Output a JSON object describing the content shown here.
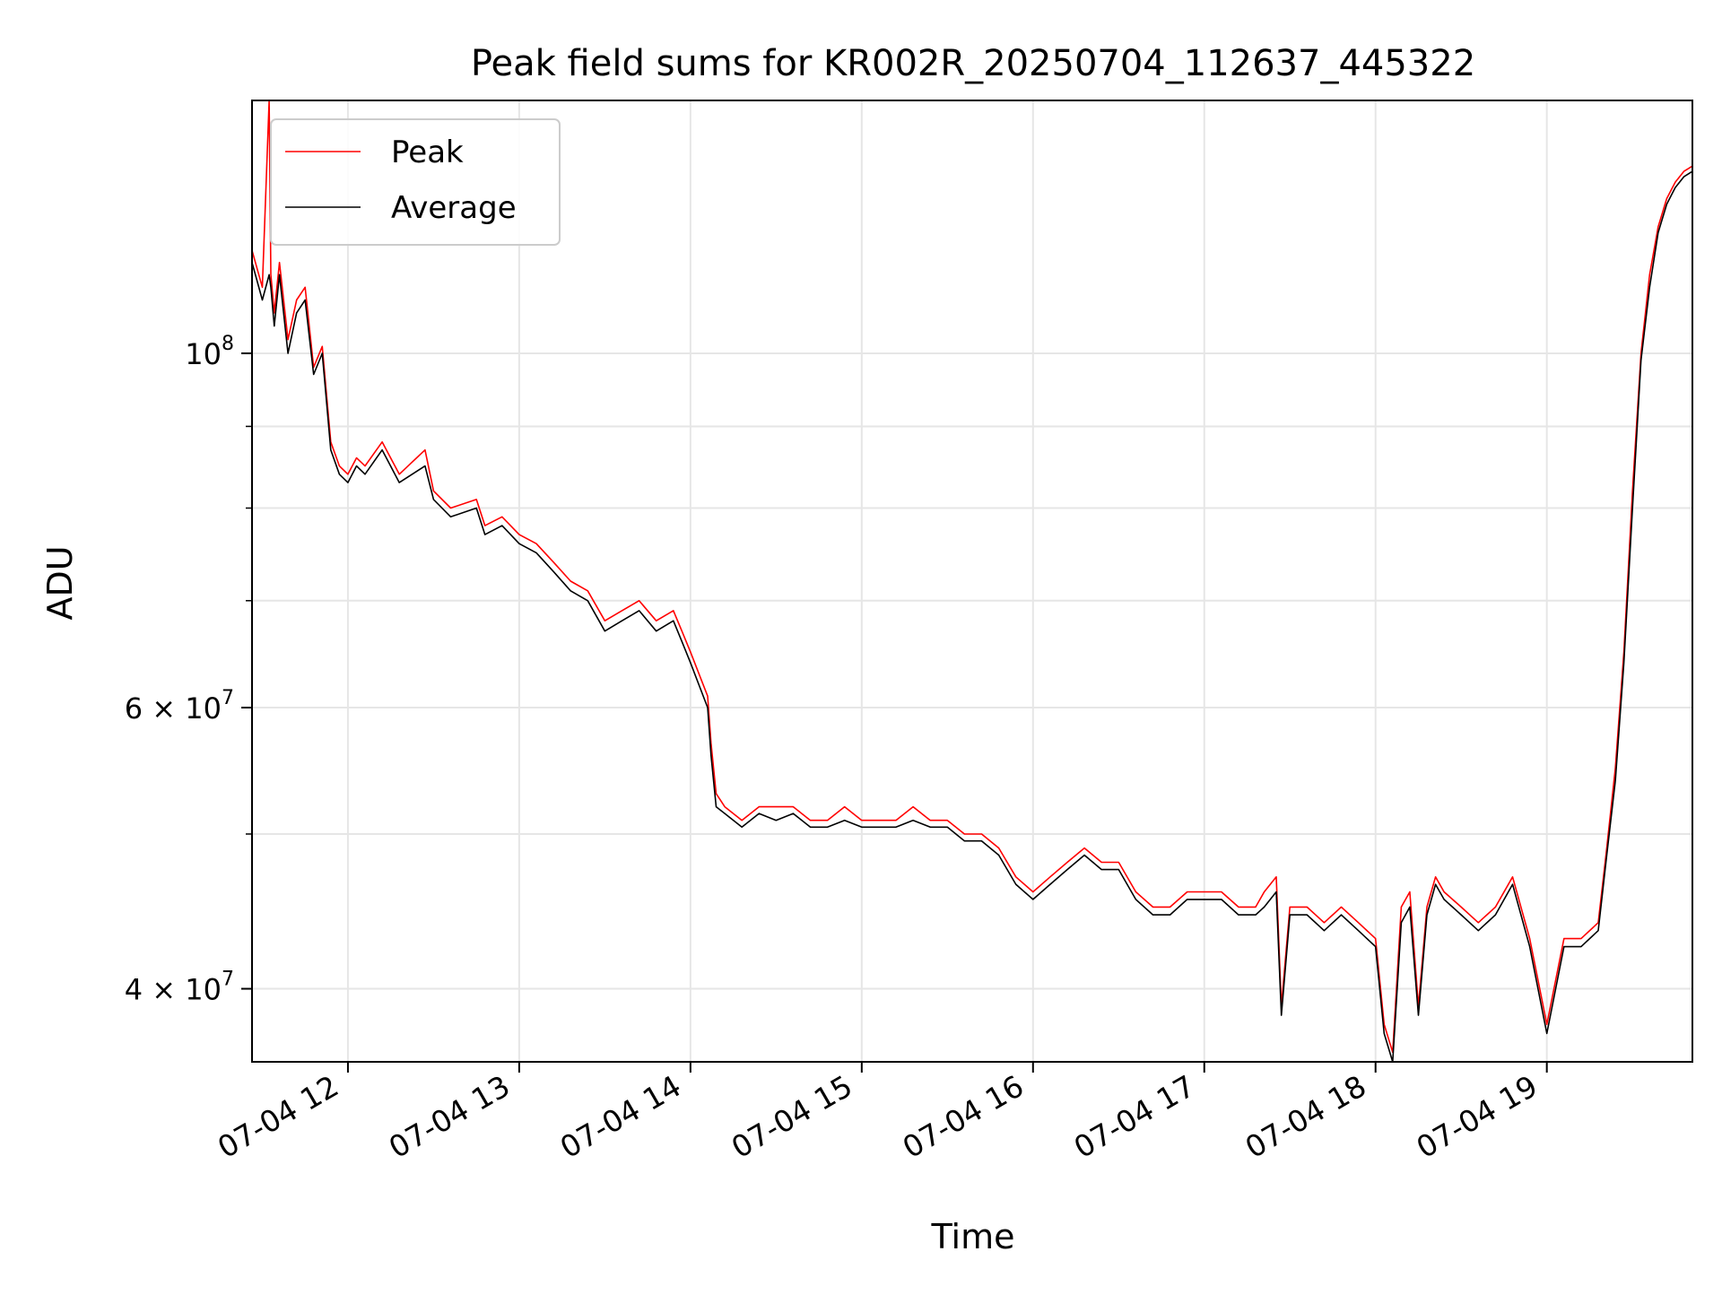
{
  "chart_data": {
    "type": "line",
    "title": "Peak field sums for KR002R_20250704_112637_445322",
    "xlabel": "Time",
    "ylabel": "ADU",
    "yscale": "log",
    "grid": true,
    "legend_position": "top-left",
    "x_unit": "hours",
    "x_range": [
      11.44,
      19.85
    ],
    "y_range": [
      36000000,
      144000000
    ],
    "x_ticks": [
      {
        "value": 12,
        "label": "07-04 12"
      },
      {
        "value": 13,
        "label": "07-04 13"
      },
      {
        "value": 14,
        "label": "07-04 14"
      },
      {
        "value": 15,
        "label": "07-04 15"
      },
      {
        "value": 16,
        "label": "07-04 16"
      },
      {
        "value": 17,
        "label": "07-04 17"
      },
      {
        "value": 18,
        "label": "07-04 18"
      },
      {
        "value": 19,
        "label": "07-04 19"
      }
    ],
    "y_ticks_major": [
      {
        "value": 40000000,
        "mantissa": "4 × 10",
        "exp": "7"
      },
      {
        "value": 60000000,
        "mantissa": "6 × 10",
        "exp": "7"
      },
      {
        "value": 100000000,
        "mantissa": "10",
        "exp": "8"
      }
    ],
    "y_ticks_minor": [
      50000000,
      70000000,
      80000000,
      90000000
    ],
    "series": [
      {
        "name": "Peak",
        "color": "#ff0000",
        "x": [
          11.44,
          11.5,
          11.54,
          11.55,
          11.57,
          11.6,
          11.65,
          11.7,
          11.75,
          11.8,
          11.85,
          11.9,
          11.95,
          12.0,
          12.05,
          12.1,
          12.2,
          12.3,
          12.45,
          12.5,
          12.6,
          12.75,
          12.8,
          12.9,
          13.0,
          13.1,
          13.2,
          13.3,
          13.4,
          13.5,
          13.6,
          13.7,
          13.8,
          13.9,
          13.95,
          14.0,
          14.1,
          14.12,
          14.15,
          14.2,
          14.3,
          14.4,
          14.5,
          14.6,
          14.7,
          14.8,
          14.9,
          15.0,
          15.1,
          15.2,
          15.3,
          15.4,
          15.5,
          15.6,
          15.7,
          15.8,
          15.9,
          16.0,
          16.1,
          16.2,
          16.3,
          16.4,
          16.5,
          16.6,
          16.7,
          16.8,
          16.9,
          17.0,
          17.1,
          17.2,
          17.3,
          17.35,
          17.42,
          17.45,
          17.5,
          17.6,
          17.7,
          17.8,
          17.9,
          18.0,
          18.05,
          18.1,
          18.15,
          18.2,
          18.25,
          18.3,
          18.35,
          18.4,
          18.5,
          18.6,
          18.7,
          18.8,
          18.9,
          19.0,
          19.1,
          19.2,
          19.3,
          19.35,
          19.4,
          19.45,
          19.5,
          19.55,
          19.6,
          19.65,
          19.7,
          19.75,
          19.8,
          19.85
        ],
        "y": [
          116000000,
          110000000,
          144000000,
          112000000,
          106000000,
          114000000,
          102000000,
          108000000,
          110000000,
          98000000,
          101000000,
          88000000,
          85000000,
          84000000,
          86000000,
          85000000,
          88000000,
          84000000,
          87000000,
          82000000,
          80000000,
          81000000,
          78000000,
          79000000,
          77000000,
          76000000,
          74000000,
          72000000,
          71000000,
          68000000,
          69000000,
          70000000,
          68000000,
          69000000,
          67000000,
          65000000,
          61000000,
          57000000,
          53000000,
          52000000,
          51000000,
          52000000,
          52000000,
          52000000,
          51000000,
          51000000,
          52000000,
          51000000,
          51000000,
          51000000,
          52000000,
          51000000,
          51000000,
          50000000,
          50000000,
          49000000,
          47000000,
          46000000,
          47000000,
          48000000,
          49000000,
          48000000,
          48000000,
          46000000,
          45000000,
          45000000,
          46000000,
          46000000,
          46000000,
          45000000,
          45000000,
          46000000,
          47000000,
          39000000,
          45000000,
          45000000,
          44000000,
          45000000,
          44000000,
          43000000,
          38000000,
          36500000,
          45000000,
          46000000,
          39000000,
          45000000,
          47000000,
          46000000,
          45000000,
          44000000,
          45000000,
          47000000,
          43000000,
          38000000,
          43000000,
          43000000,
          44000000,
          49000000,
          55000000,
          65000000,
          82000000,
          100000000,
          112000000,
          120000000,
          125000000,
          128000000,
          130000000,
          131000000
        ]
      },
      {
        "name": "Average",
        "color": "#000000",
        "x": [
          11.44,
          11.5,
          11.54,
          11.55,
          11.57,
          11.6,
          11.65,
          11.7,
          11.75,
          11.8,
          11.85,
          11.9,
          11.95,
          12.0,
          12.05,
          12.1,
          12.2,
          12.3,
          12.45,
          12.5,
          12.6,
          12.75,
          12.8,
          12.9,
          13.0,
          13.1,
          13.2,
          13.3,
          13.4,
          13.5,
          13.6,
          13.7,
          13.8,
          13.9,
          13.95,
          14.0,
          14.1,
          14.12,
          14.15,
          14.2,
          14.3,
          14.4,
          14.5,
          14.6,
          14.7,
          14.8,
          14.9,
          15.0,
          15.1,
          15.2,
          15.3,
          15.4,
          15.5,
          15.6,
          15.7,
          15.8,
          15.9,
          16.0,
          16.1,
          16.2,
          16.3,
          16.4,
          16.5,
          16.6,
          16.7,
          16.8,
          16.9,
          17.0,
          17.1,
          17.2,
          17.3,
          17.35,
          17.42,
          17.45,
          17.5,
          17.6,
          17.7,
          17.8,
          17.9,
          18.0,
          18.05,
          18.1,
          18.15,
          18.2,
          18.25,
          18.3,
          18.35,
          18.4,
          18.5,
          18.6,
          18.7,
          18.8,
          18.9,
          19.0,
          19.1,
          19.2,
          19.3,
          19.35,
          19.4,
          19.45,
          19.5,
          19.55,
          19.6,
          19.65,
          19.7,
          19.75,
          19.8,
          19.85
        ],
        "y": [
          114000000,
          108000000,
          112000000,
          110000000,
          104000000,
          112000000,
          100000000,
          106000000,
          108000000,
          97000000,
          100000000,
          87000000,
          84000000,
          83000000,
          85000000,
          84000000,
          87000000,
          83000000,
          85000000,
          81000000,
          79000000,
          80000000,
          77000000,
          78000000,
          76000000,
          75000000,
          73000000,
          71000000,
          70000000,
          67000000,
          68000000,
          69000000,
          67000000,
          68000000,
          66000000,
          64000000,
          60000000,
          56000000,
          52000000,
          51500000,
          50500000,
          51500000,
          51000000,
          51500000,
          50500000,
          50500000,
          51000000,
          50500000,
          50500000,
          50500000,
          51000000,
          50500000,
          50500000,
          49500000,
          49500000,
          48500000,
          46500000,
          45500000,
          46500000,
          47500000,
          48500000,
          47500000,
          47500000,
          45500000,
          44500000,
          44500000,
          45500000,
          45500000,
          45500000,
          44500000,
          44500000,
          45000000,
          46000000,
          38500000,
          44500000,
          44500000,
          43500000,
          44500000,
          43500000,
          42500000,
          37500000,
          36000000,
          44000000,
          45000000,
          38500000,
          44500000,
          46500000,
          45500000,
          44500000,
          43500000,
          44500000,
          46500000,
          42500000,
          37500000,
          42500000,
          42500000,
          43500000,
          48500000,
          54000000,
          64000000,
          80000000,
          99000000,
          110000000,
          119000000,
          124000000,
          127000000,
          129000000,
          130000000
        ]
      }
    ]
  }
}
